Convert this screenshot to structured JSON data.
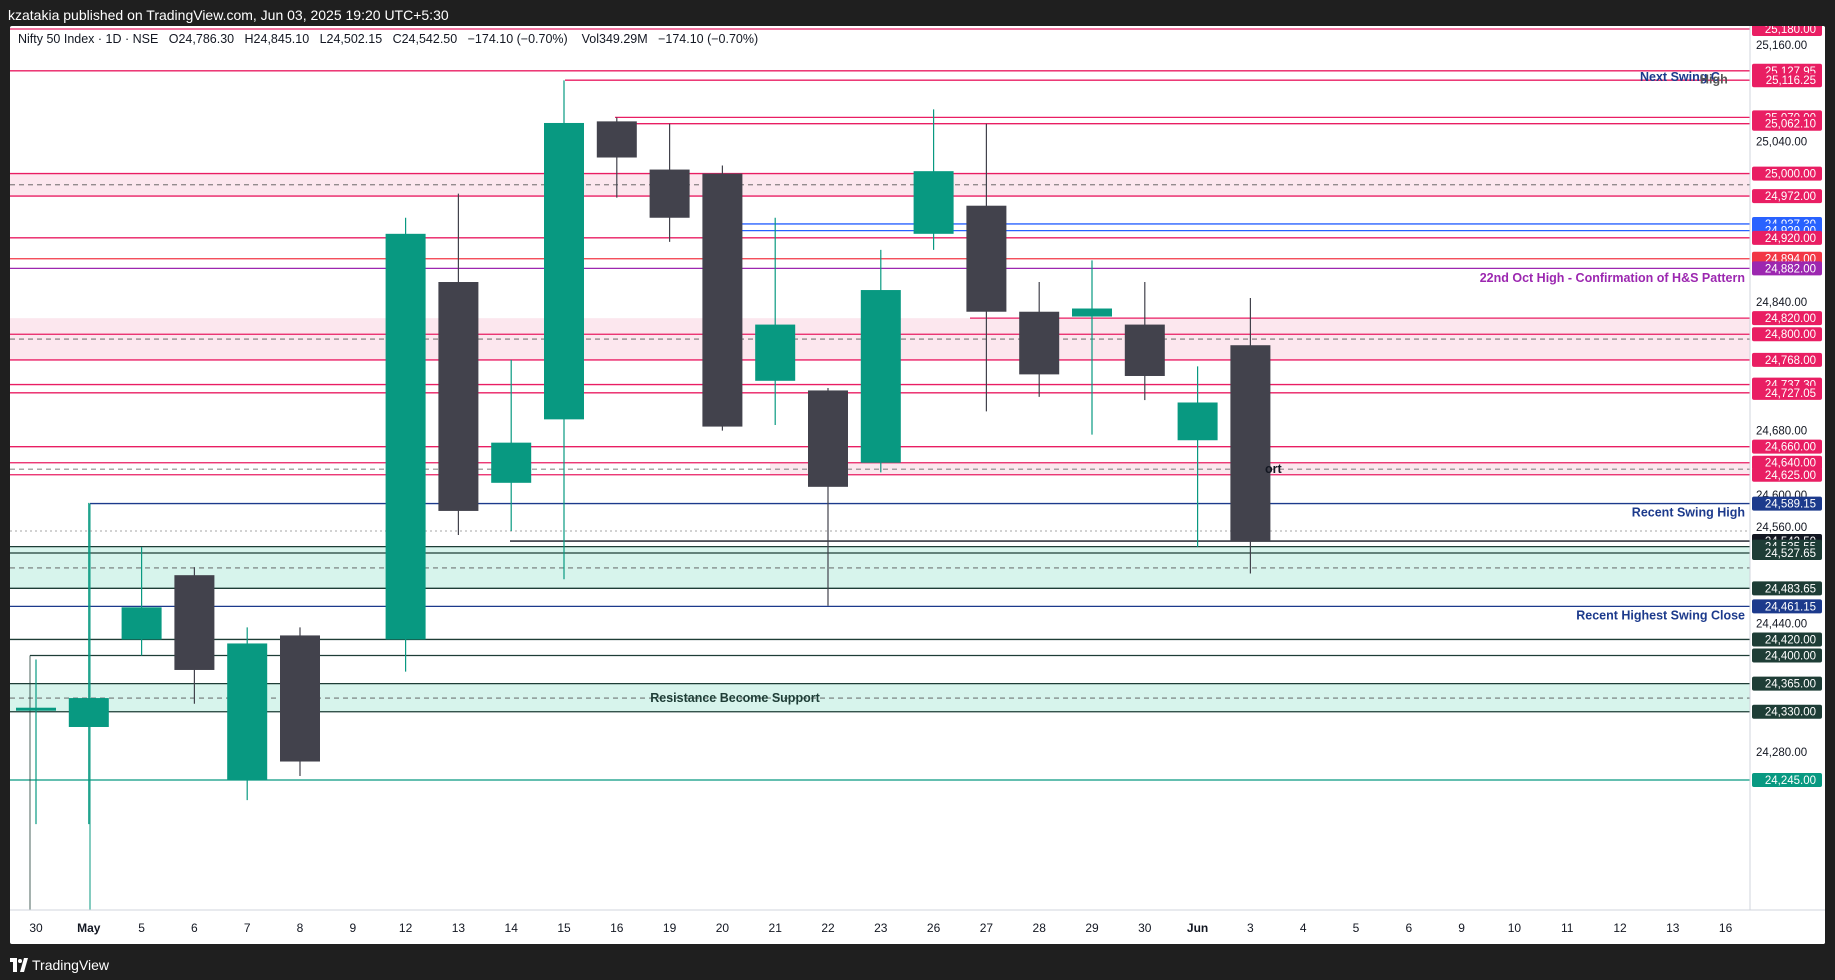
{
  "header": {
    "publisher_line": "kzatakia published on TradingView.com, Jun 03, 2025 19:20 UTC+5:30"
  },
  "legend": {
    "symbol": "Nifty 50 Index · 1D · NSE",
    "o_label": "O",
    "o_value": "24,786.30",
    "h_label": "H",
    "h_value": "24,845.10",
    "l_label": "L",
    "l_value": "24,502.15",
    "c_label": "C",
    "c_value": "24,542.50",
    "change": "−174.10 (−0.70%)",
    "vol_label": "Vol",
    "vol_value": "349.29M",
    "vol_change": "−174.10 (−0.70%)"
  },
  "footer": {
    "brand": "TradingView"
  },
  "colors": {
    "up": "#089981",
    "down": "#42424c",
    "pink": "#e91e63",
    "navy": "#1c3a8c",
    "purple": "#9c27b0",
    "blue": "#2962ff",
    "green_zone": "#d3f3ea",
    "pink_zone": "#fce4ec"
  },
  "chart_data": {
    "type": "candlestick",
    "symbol": "Nifty 50 Index",
    "interval": "1D",
    "exchange": "NSE",
    "ylim": [
      24245,
      25182
    ],
    "x_ticks": [
      "30",
      "May",
      "5",
      "6",
      "7",
      "8",
      "9",
      "12",
      "13",
      "14",
      "15",
      "16",
      "19",
      "20",
      "21",
      "22",
      "23",
      "26",
      "27",
      "28",
      "29",
      "30",
      "Jun",
      "3",
      "4",
      "5",
      "6",
      "9",
      "10",
      "11",
      "12",
      "13",
      "16"
    ],
    "y_ticks": [
      "25,160.00",
      "25,040.00",
      "24,840.00",
      "24,680.00",
      "24,600.00",
      "24,560.00",
      "24,440.00",
      "24,280.00"
    ],
    "candles": [
      {
        "date": "Apr 30",
        "open": 24335,
        "high": 24395,
        "low": 24190,
        "close": 24335
      },
      {
        "date": "May 2",
        "open": 24311,
        "high": 24590,
        "low": 24190,
        "close": 24347
      },
      {
        "date": "May 5",
        "open": 24420,
        "high": 24535,
        "low": 24400,
        "close": 24460
      },
      {
        "date": "May 6",
        "open": 24500,
        "high": 24510,
        "low": 24340,
        "close": 24382
      },
      {
        "date": "May 7",
        "open": 24245,
        "high": 24435,
        "low": 24220,
        "close": 24415
      },
      {
        "date": "May 8",
        "open": 24425,
        "high": 24435,
        "low": 24250,
        "close": 24268
      },
      {
        "date": "May 12",
        "open": 24420,
        "high": 24945,
        "low": 24380,
        "close": 24925
      },
      {
        "date": "May 13",
        "open": 24865,
        "high": 24975,
        "low": 24550,
        "close": 24580
      },
      {
        "date": "May 14",
        "open": 24615,
        "high": 24768,
        "low": 24555,
        "close": 24665
      },
      {
        "date": "May 15",
        "open": 24694,
        "high": 25116,
        "low": 24495,
        "close": 25063
      },
      {
        "date": "May 16",
        "open": 25065,
        "high": 25070,
        "low": 24970,
        "close": 25020
      },
      {
        "date": "May 19",
        "open": 25005,
        "high": 25062,
        "low": 24915,
        "close": 24945
      },
      {
        "date": "May 20",
        "open": 25000,
        "high": 25010,
        "low": 24680,
        "close": 24685
      },
      {
        "date": "May 21",
        "open": 24742,
        "high": 24945,
        "low": 24687,
        "close": 24812
      },
      {
        "date": "May 22",
        "open": 24730,
        "high": 24733,
        "low": 24462,
        "close": 24610
      },
      {
        "date": "May 23",
        "open": 24640,
        "high": 24905,
        "low": 24628,
        "close": 24855
      },
      {
        "date": "May 26",
        "open": 24925,
        "high": 25080,
        "low": 24905,
        "close": 25003
      },
      {
        "date": "May 27",
        "open": 24960,
        "high": 25062,
        "low": 24704,
        "close": 24828
      },
      {
        "date": "May 28",
        "open": 24828,
        "high": 24865,
        "low": 24722,
        "close": 24750
      },
      {
        "date": "May 29",
        "open": 24822,
        "high": 24892,
        "low": 24675,
        "close": 24832
      },
      {
        "date": "May 30",
        "open": 24812,
        "high": 24865,
        "low": 24718,
        "close": 24748
      },
      {
        "date": "Jun 2",
        "open": 24668,
        "high": 24760,
        "low": 24535,
        "close": 24715
      },
      {
        "date": "Jun 3",
        "open": 24786.3,
        "high": 24845.1,
        "low": 24502.15,
        "close": 24542.5
      }
    ],
    "levels": [
      {
        "price": 25180,
        "label": "25,180.00",
        "color": "#e91e63"
      },
      {
        "price": 25127.95,
        "label": "25,127.95",
        "color": "#e91e63"
      },
      {
        "price": 25116.25,
        "label": "25,116.25",
        "color": "#e91e63"
      },
      {
        "price": 25070,
        "label": "25,070.00",
        "color": "#e91e63"
      },
      {
        "price": 25062.1,
        "label": "25,062.10",
        "color": "#e91e63"
      },
      {
        "price": 25000,
        "label": "25,000.00",
        "color": "#e91e63"
      },
      {
        "price": 24972,
        "label": "24,972.00",
        "color": "#e91e63"
      },
      {
        "price": 24937.3,
        "label": "24,937.30",
        "color": "#2962ff"
      },
      {
        "price": 24929,
        "label": "24,929.00",
        "color": "#2962ff"
      },
      {
        "price": 24920,
        "label": "24,920.00",
        "color": "#e91e63"
      },
      {
        "price": 24894,
        "label": "24,894.00",
        "color": "#f23645"
      },
      {
        "price": 24882,
        "label": "24,882.00",
        "color": "#9c27b0"
      },
      {
        "price": 24820,
        "label": "24,820.00",
        "color": "#e91e63"
      },
      {
        "price": 24800,
        "label": "24,800.00",
        "color": "#e91e63"
      },
      {
        "price": 24768,
        "label": "24,768.00",
        "color": "#e91e63"
      },
      {
        "price": 24737.3,
        "label": "24,737.30",
        "color": "#e91e63"
      },
      {
        "price": 24727.05,
        "label": "24,727.05",
        "color": "#e91e63"
      },
      {
        "price": 24660,
        "label": "24,660.00",
        "color": "#e91e63"
      },
      {
        "price": 24640,
        "label": "24,640.00",
        "color": "#e91e63"
      },
      {
        "price": 24625,
        "label": "24,625.00",
        "color": "#e91e63"
      },
      {
        "price": 24589.15,
        "label": "24,589.15",
        "color": "#1c3a8c"
      },
      {
        "price": 24542.5,
        "label": "24,542.50",
        "color": "#131722"
      },
      {
        "price": 24535.55,
        "label": "24,535.55",
        "color": "#1e3d36"
      },
      {
        "price": 24527.65,
        "label": "24,527.65",
        "color": "#1e3d36"
      },
      {
        "price": 24483.65,
        "label": "24,483.65",
        "color": "#1e3d36"
      },
      {
        "price": 24461.15,
        "label": "24,461.15",
        "color": "#1c3a8c"
      },
      {
        "price": 24420,
        "label": "24,420.00",
        "color": "#1e3d36"
      },
      {
        "price": 24400,
        "label": "24,400.00",
        "color": "#1e3d36"
      },
      {
        "price": 24365,
        "label": "24,365.00",
        "color": "#1e3d36"
      },
      {
        "price": 24330,
        "label": "24,330.00",
        "color": "#1e3d36"
      },
      {
        "price": 24245,
        "label": "24,245.00",
        "color": "#089981"
      }
    ],
    "annotations": [
      {
        "text": "Next Swing C",
        "price": 25120
      },
      {
        "text": "High",
        "price": 25117
      },
      {
        "text": "22nd Oct High - Confirmation of H&S Pattern",
        "price": 24870
      },
      {
        "text": "ort",
        "price": 24632
      },
      {
        "text": "Recent Swing High",
        "price": 24578
      },
      {
        "text": "Recent Highest Swing Close",
        "price": 24450
      },
      {
        "text": "Resistance Become Support",
        "price": 24347
      }
    ]
  }
}
